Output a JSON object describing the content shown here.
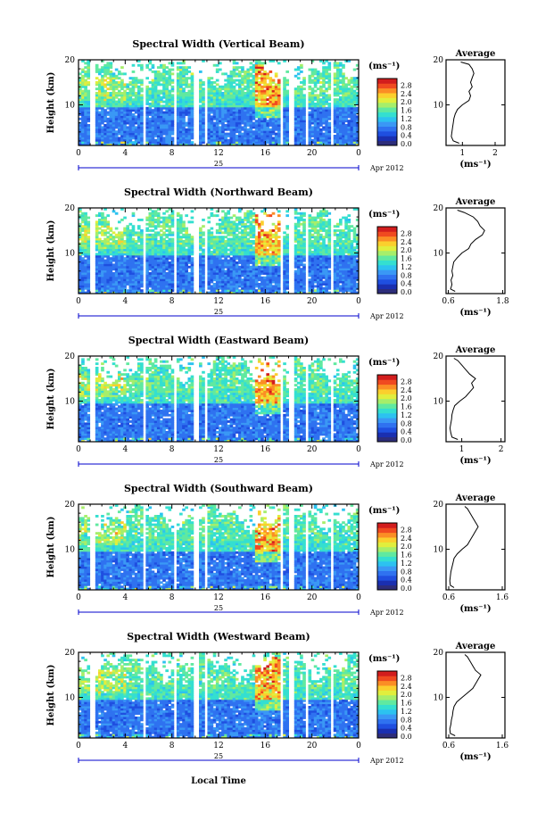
{
  "figure": {
    "x_axis_label": "Local Time",
    "date_label": "25",
    "month_year": "Apr 2012"
  },
  "colorbar": {
    "unit": "(ms⁻¹)",
    "ticks": [
      "0.0",
      "0.4",
      "0.8",
      "1.2",
      "1.6",
      "2.0",
      "2.4",
      "2.8"
    ],
    "colors": [
      "#2d2d7a",
      "#1a2fb0",
      "#1f4fe0",
      "#2f72f0",
      "#3a98f5",
      "#2cc2f0",
      "#34dfd0",
      "#60e9a0",
      "#a6ee6a",
      "#e1ee3d",
      "#fbcf2d",
      "#fb8e25",
      "#f04a20",
      "#d21d1d"
    ]
  },
  "chart_data": [
    {
      "type": "heatmap",
      "title": "Spectral Width (Vertical Beam)",
      "xlabel": "",
      "ylabel": "Height (km)",
      "x_ticks": [
        "0",
        "4",
        "8",
        "12",
        "16",
        "20",
        "0"
      ],
      "xlim": [
        0,
        24
      ],
      "y_ticks": [
        "10",
        "20"
      ],
      "ylim": [
        1,
        20
      ],
      "color_scale_label": "(ms⁻¹)",
      "profile": {
        "title": "Average",
        "xlabel": "(ms⁻¹)",
        "x_ticks": [
          "1",
          "2"
        ],
        "xlim": [
          0.5,
          2.3
        ],
        "heights": [
          1.5,
          2,
          3,
          4,
          5,
          6,
          7,
          8,
          9,
          10,
          11,
          12,
          13,
          14,
          15,
          16,
          17,
          18,
          19,
          19.5
        ],
        "values": [
          0.9,
          0.72,
          0.66,
          0.68,
          0.7,
          0.72,
          0.74,
          0.78,
          0.85,
          1.0,
          1.2,
          1.25,
          1.2,
          1.3,
          1.25,
          1.3,
          1.35,
          1.3,
          1.2,
          0.95
        ]
      }
    },
    {
      "type": "heatmap",
      "title": "Spectral Width (Northward Beam)",
      "xlabel": "",
      "ylabel": "Height (km)",
      "x_ticks": [
        "0",
        "4",
        "8",
        "12",
        "16",
        "20",
        "0"
      ],
      "xlim": [
        0,
        24
      ],
      "y_ticks": [
        "10",
        "20"
      ],
      "ylim": [
        1,
        20
      ],
      "color_scale_label": "(ms⁻¹)",
      "profile": {
        "title": "Average",
        "xlabel": "(ms⁻¹)",
        "x_ticks": [
          "0.6",
          "1.8"
        ],
        "xlim": [
          0.55,
          1.85
        ],
        "heights": [
          1.5,
          2,
          3,
          4,
          5,
          6,
          7,
          8,
          9,
          10,
          11,
          12,
          13,
          14,
          15,
          16,
          17,
          18,
          19,
          19.5
        ],
        "values": [
          0.75,
          0.65,
          0.68,
          0.66,
          0.7,
          0.68,
          0.7,
          0.72,
          0.8,
          0.9,
          1.05,
          1.1,
          1.2,
          1.35,
          1.4,
          1.3,
          1.25,
          1.15,
          0.95,
          0.8
        ]
      }
    },
    {
      "type": "heatmap",
      "title": "Spectral Width (Eastward Beam)",
      "xlabel": "",
      "ylabel": "Height (km)",
      "x_ticks": [
        "0",
        "4",
        "8",
        "12",
        "16",
        "20",
        "0"
      ],
      "xlim": [
        0,
        24
      ],
      "y_ticks": [
        "10",
        "20"
      ],
      "ylim": [
        1,
        20
      ],
      "color_scale_label": "(ms⁻¹)",
      "profile": {
        "title": "Average",
        "xlabel": "(ms⁻¹)",
        "x_ticks": [
          "1",
          "2"
        ],
        "xlim": [
          0.6,
          2.1
        ],
        "heights": [
          1.5,
          2,
          3,
          4,
          5,
          6,
          7,
          8,
          9,
          10,
          11,
          12,
          13,
          14,
          15,
          16,
          17,
          18,
          19,
          19.5
        ],
        "values": [
          0.9,
          0.75,
          0.72,
          0.7,
          0.72,
          0.74,
          0.75,
          0.78,
          0.82,
          0.95,
          1.1,
          1.2,
          1.3,
          1.25,
          1.35,
          1.2,
          1.1,
          1.0,
          0.9,
          0.8
        ]
      }
    },
    {
      "type": "heatmap",
      "title": "Spectral Width (Southward Beam)",
      "xlabel": "",
      "ylabel": "Height (km)",
      "x_ticks": [
        "0",
        "4",
        "8",
        "12",
        "16",
        "20",
        "0"
      ],
      "xlim": [
        0,
        24
      ],
      "y_ticks": [
        "10",
        "20"
      ],
      "ylim": [
        1,
        20
      ],
      "color_scale_label": "(ms⁻¹)",
      "profile": {
        "title": "Average",
        "xlabel": "(ms⁻¹)",
        "x_ticks": [
          "0.6",
          "1.6"
        ],
        "xlim": [
          0.55,
          1.65
        ],
        "heights": [
          1.5,
          2,
          3,
          4,
          5,
          6,
          7,
          8,
          9,
          10,
          11,
          12,
          13,
          14,
          15,
          16,
          17,
          18,
          19,
          19.5
        ],
        "values": [
          0.7,
          0.63,
          0.62,
          0.63,
          0.64,
          0.66,
          0.68,
          0.7,
          0.76,
          0.85,
          0.95,
          1.0,
          1.05,
          1.1,
          1.15,
          1.1,
          1.05,
          1.0,
          0.95,
          0.9
        ]
      }
    },
    {
      "type": "heatmap",
      "title": "Spectral Width (Westward Beam)",
      "xlabel": "",
      "ylabel": "Height (km)",
      "x_ticks": [
        "0",
        "4",
        "8",
        "12",
        "16",
        "20",
        "0"
      ],
      "xlim": [
        0,
        24
      ],
      "y_ticks": [
        "10",
        "20"
      ],
      "ylim": [
        1,
        20
      ],
      "color_scale_label": "(ms⁻¹)",
      "profile": {
        "title": "Average",
        "xlabel": "(ms⁻¹)",
        "x_ticks": [
          "0.6",
          "1.6"
        ],
        "xlim": [
          0.55,
          1.65
        ],
        "heights": [
          1.5,
          2,
          3,
          4,
          5,
          6,
          7,
          8,
          9,
          10,
          11,
          12,
          13,
          14,
          15,
          16,
          17,
          18,
          19,
          19.5
        ],
        "values": [
          0.72,
          0.63,
          0.62,
          0.64,
          0.65,
          0.67,
          0.68,
          0.7,
          0.75,
          0.85,
          0.95,
          1.05,
          1.1,
          1.15,
          1.2,
          1.1,
          1.05,
          1.0,
          0.95,
          0.9
        ]
      }
    }
  ]
}
